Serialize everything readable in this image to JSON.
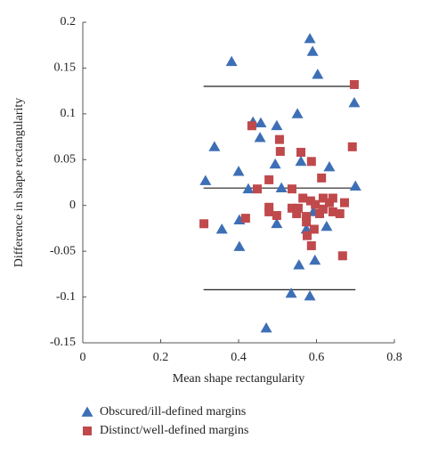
{
  "chart_data": {
    "type": "scatter",
    "x_label": "Mean shape rectangularity",
    "y_label": "Difference in shape rectangularity",
    "xlim": [
      0,
      0.8
    ],
    "xticks": [
      0,
      0.2,
      0.4,
      0.6,
      0.8
    ],
    "ylim": [
      -0.15,
      0.2
    ],
    "yticks": [
      0.2,
      0.15,
      0.1,
      0.05,
      0,
      -0.05,
      -0.1,
      -0.15
    ],
    "grid": false,
    "reference_lines": [
      {
        "y": 0.13,
        "x": [
          0.31,
          0.7
        ]
      },
      {
        "y": 0.019,
        "x": [
          0.31,
          0.7
        ]
      },
      {
        "y": -0.092,
        "x": [
          0.31,
          0.7
        ]
      }
    ],
    "series": [
      {
        "name": "Obscured/ill-defined margins",
        "color": "#3d6fb6",
        "marker": "triangle",
        "x": [
          0.382,
          0.583,
          0.59,
          0.603,
          0.315,
          0.338,
          0.4,
          0.425,
          0.437,
          0.457,
          0.455,
          0.498,
          0.551,
          0.494,
          0.51,
          0.56,
          0.633,
          0.7,
          0.697,
          0.402,
          0.357,
          0.402,
          0.498,
          0.592,
          0.574,
          0.626,
          0.555,
          0.596,
          0.535,
          0.583,
          0.471
        ],
        "y": [
          0.157,
          0.182,
          0.168,
          0.143,
          0.027,
          0.064,
          0.037,
          0.018,
          0.091,
          0.09,
          0.074,
          0.087,
          0.1,
          0.045,
          0.019,
          0.048,
          0.042,
          0.021,
          0.112,
          -0.016,
          -0.026,
          -0.045,
          -0.02,
          -0.007,
          -0.026,
          -0.023,
          -0.065,
          -0.06,
          -0.096,
          -0.099,
          -0.134
        ]
      },
      {
        "name": "Distinct/well-defined margins",
        "color": "#c0494b",
        "marker": "square",
        "x": [
          0.434,
          0.505,
          0.507,
          0.478,
          0.448,
          0.418,
          0.311,
          0.478,
          0.478,
          0.498,
          0.537,
          0.56,
          0.587,
          0.613,
          0.565,
          0.585,
          0.553,
          0.537,
          0.549,
          0.574,
          0.597,
          0.608,
          0.617,
          0.633,
          0.642,
          0.617,
          0.642,
          0.66,
          0.672,
          0.574,
          0.594,
          0.587,
          0.667,
          0.692,
          0.697,
          0.576
        ],
        "y": [
          0.087,
          0.072,
          0.059,
          0.028,
          0.018,
          -0.014,
          -0.02,
          -0.002,
          -0.007,
          -0.011,
          0.018,
          0.058,
          0.048,
          0.03,
          0.008,
          0.005,
          -0.003,
          -0.003,
          -0.009,
          -0.012,
          0.001,
          -0.009,
          0.008,
          0.003,
          0.008,
          -0.004,
          -0.007,
          -0.009,
          0.003,
          -0.018,
          -0.026,
          -0.044,
          -0.055,
          0.064,
          0.132,
          -0.033
        ]
      }
    ]
  }
}
